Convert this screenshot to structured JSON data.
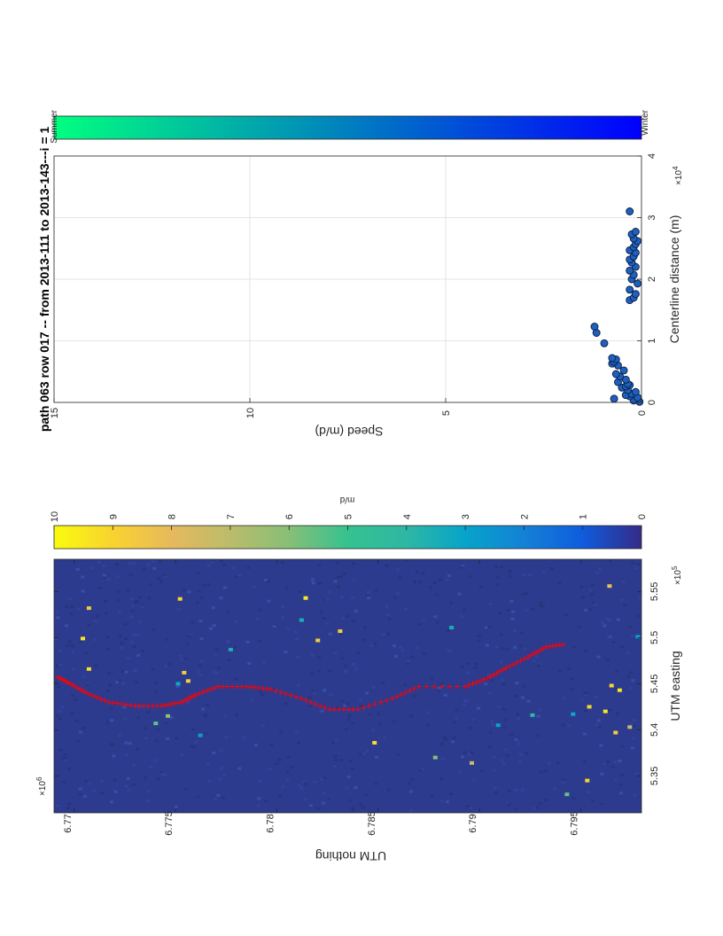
{
  "chart_data": [
    {
      "type": "heatmap",
      "xlabel": "UTM easting",
      "ylabel": "UTM nothing",
      "x_ticks": [
        "5.35",
        "5.4",
        "5.45",
        "5.5",
        "5.55"
      ],
      "x_tick_values": [
        535000,
        540000,
        545000,
        550000,
        555000
      ],
      "x_multiplier": "×10",
      "x_exponent": "5",
      "xlim": [
        531000,
        558500
      ],
      "y_ticks": [
        "6.77",
        "6.775",
        "6.78",
        "6.785",
        "6.79",
        "6.795"
      ],
      "y_tick_values": [
        6770000,
        6775000,
        6780000,
        6785000,
        6790000,
        6795000
      ],
      "y_multiplier": "×10",
      "y_exponent": "6",
      "ylim": [
        6769000,
        6798000
      ],
      "colorbar": {
        "label": "m/d",
        "ticks": [
          "0",
          "1",
          "2",
          "3",
          "4",
          "5",
          "6",
          "7",
          "8",
          "9",
          "10"
        ],
        "range": [
          0,
          10
        ],
        "colormap": "parula"
      },
      "background_color": "#2c3b8e",
      "hotspots": [
        {
          "x": 549900,
          "y": 6770400,
          "v": 9.5
        },
        {
          "x": 546600,
          "y": 6770700,
          "v": 9.2
        },
        {
          "x": 553200,
          "y": 6770700,
          "v": 8.6
        },
        {
          "x": 546200,
          "y": 6775400,
          "v": 8.8
        },
        {
          "x": 545300,
          "y": 6775600,
          "v": 8.9
        },
        {
          "x": 541500,
          "y": 6774600,
          "v": 6.2
        },
        {
          "x": 540700,
          "y": 6774000,
          "v": 5.5
        },
        {
          "x": 554300,
          "y": 6781400,
          "v": 9.6
        },
        {
          "x": 554200,
          "y": 6775200,
          "v": 9.0
        },
        {
          "x": 551900,
          "y": 6781200,
          "v": 3.5
        },
        {
          "x": 549700,
          "y": 6782000,
          "v": 8.7
        },
        {
          "x": 538600,
          "y": 6784800,
          "v": 9.2
        },
        {
          "x": 537000,
          "y": 6787800,
          "v": 6.0
        },
        {
          "x": 536400,
          "y": 6789600,
          "v": 7.3
        },
        {
          "x": 540500,
          "y": 6790900,
          "v": 3.0
        },
        {
          "x": 541600,
          "y": 6792600,
          "v": 4.1
        },
        {
          "x": 544300,
          "y": 6796900,
          "v": 9.4
        },
        {
          "x": 542500,
          "y": 6795400,
          "v": 9.0
        },
        {
          "x": 542000,
          "y": 6796200,
          "v": 9.5
        },
        {
          "x": 541700,
          "y": 6794600,
          "v": 3.2
        },
        {
          "x": 540300,
          "y": 6797400,
          "v": 7.1
        },
        {
          "x": 539700,
          "y": 6796700,
          "v": 8.8
        },
        {
          "x": 548700,
          "y": 6777700,
          "v": 3.6
        },
        {
          "x": 550700,
          "y": 6783100,
          "v": 8.9
        },
        {
          "x": 544800,
          "y": 6796500,
          "v": 9.1
        },
        {
          "x": 550100,
          "y": 6797800,
          "v": 3.1
        },
        {
          "x": 551100,
          "y": 6788600,
          "v": 3.4
        },
        {
          "x": 545000,
          "y": 6775100,
          "v": 3.2
        },
        {
          "x": 555600,
          "y": 6796400,
          "v": 8.4
        },
        {
          "x": 534500,
          "y": 6795300,
          "v": 9.0
        },
        {
          "x": 533000,
          "y": 6794300,
          "v": 5.6
        },
        {
          "x": 539400,
          "y": 6776200,
          "v": 2.8
        }
      ],
      "flowline": {
        "x": [
          545700,
          545000,
          544000,
          543000,
          542600,
          542600,
          543000,
          543800,
          544700,
          544700,
          544400,
          543400,
          542200,
          542200,
          543400,
          544700,
          544700,
          545600,
          546700,
          547900,
          549000,
          549300
        ],
        "y": [
          6769200,
          6769800,
          6770600,
          6771700,
          6773000,
          6774300,
          6775300,
          6776000,
          6777100,
          6778500,
          6779700,
          6781200,
          6782600,
          6784000,
          6785700,
          6787000,
          6789300,
          6790400,
          6791300,
          6792400,
          6793300,
          6794300
        ]
      },
      "flowline_color": "#ff0000"
    },
    {
      "type": "scatter",
      "title": "path 063 row 017  -- from 2013-111 to 2013-143---i = 1",
      "xlabel": "Centerline distance (m)",
      "ylabel": "Speed (m/d)",
      "x_ticks": [
        "0",
        "1",
        "2",
        "3",
        "4"
      ],
      "x_tick_values": [
        0,
        10000,
        20000,
        30000,
        40000
      ],
      "x_multiplier": "×10",
      "x_exponent": "4",
      "xlim": [
        0,
        40000
      ],
      "y_ticks": [
        "0",
        "5",
        "10",
        "15"
      ],
      "y_tick_values": [
        0,
        5,
        10,
        15
      ],
      "ylim": [
        0,
        15
      ],
      "grid": true,
      "marker_color": "#1f5fc0",
      "x": [
        100,
        300,
        600,
        800,
        1000,
        1200,
        1400,
        1700,
        2000,
        2400,
        2600,
        2800,
        3000,
        3300,
        3700,
        4200,
        4600,
        5200,
        6000,
        6300,
        6600,
        7000,
        7200,
        9600,
        11300,
        12300,
        16600,
        17000,
        17600,
        18300,
        19300,
        20000,
        20700,
        21400,
        22000,
        22700,
        23200,
        23700,
        24300,
        24700,
        25200,
        25700,
        26200,
        26600,
        27300,
        27700,
        31000
      ],
      "y": [
        0.05,
        0.2,
        0.7,
        0.1,
        0.3,
        0.4,
        0.25,
        0.15,
        0.35,
        0.5,
        0.4,
        0.3,
        0.35,
        0.6,
        0.4,
        0.55,
        0.65,
        0.45,
        0.6,
        0.75,
        0.7,
        0.65,
        0.75,
        0.95,
        1.15,
        1.2,
        0.3,
        0.2,
        0.15,
        0.3,
        0.1,
        0.25,
        0.2,
        0.3,
        0.15,
        0.25,
        0.3,
        0.2,
        0.15,
        0.3,
        0.2,
        0.15,
        0.1,
        0.2,
        0.25,
        0.15,
        0.3
      ],
      "colorbar": {
        "labels": [
          "Summer",
          "Winter"
        ],
        "colormap": "winter"
      }
    }
  ]
}
